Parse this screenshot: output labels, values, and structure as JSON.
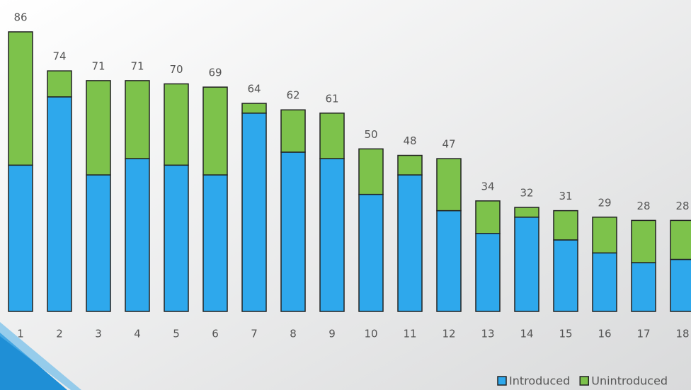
{
  "chart_data": {
    "type": "stacked_bar",
    "categories": [
      "1",
      "2",
      "3",
      "4",
      "5",
      "6",
      "7",
      "8",
      "9",
      "10",
      "11",
      "12",
      "13",
      "14",
      "15",
      "16",
      "17",
      "18"
    ],
    "series": [
      {
        "name": "Introduced",
        "color": "#2ea8ec",
        "values": [
          45,
          66,
          42,
          47,
          45,
          42,
          61,
          49,
          47,
          36,
          42,
          31,
          24,
          29,
          22,
          18,
          15,
          16
        ]
      },
      {
        "name": "Unintroduced",
        "color": "#7dc24b",
        "values": [
          41,
          8,
          29,
          24,
          25,
          27,
          3,
          13,
          14,
          14,
          6,
          16,
          10,
          3,
          9,
          11,
          13,
          12
        ]
      }
    ],
    "totals": [
      86,
      74,
      71,
      71,
      70,
      69,
      64,
      62,
      61,
      50,
      48,
      47,
      34,
      32,
      31,
      29,
      28,
      28
    ],
    "ylim": [
      0,
      86
    ]
  }
}
